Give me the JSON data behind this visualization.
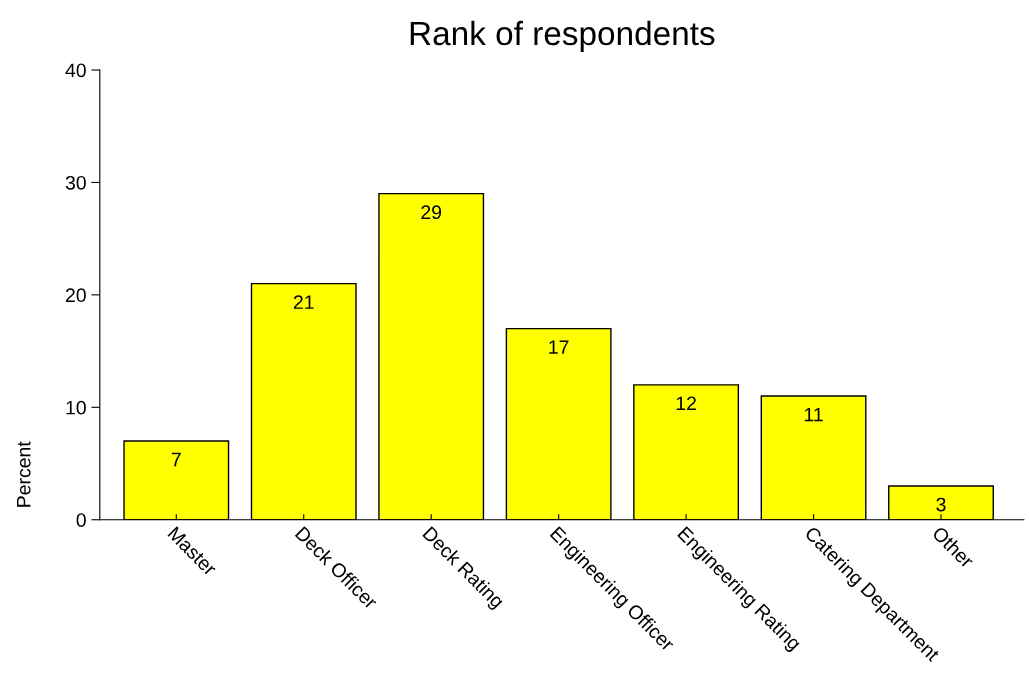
{
  "chart_data": {
    "type": "bar",
    "title": "Rank of respondents",
    "ylabel": "Percent",
    "categories": [
      "Master",
      "Deck Officer",
      "Deck Rating",
      "Engineering Officer",
      "Engineering Rating",
      "Catering Department",
      "Other"
    ],
    "values": [
      7,
      21,
      29,
      17,
      12,
      11,
      3
    ],
    "color": "#ffff00",
    "ylim": [
      0,
      40
    ],
    "yticks": [
      0,
      10,
      20,
      30,
      40
    ],
    "grid": false,
    "data_labels": true
  }
}
